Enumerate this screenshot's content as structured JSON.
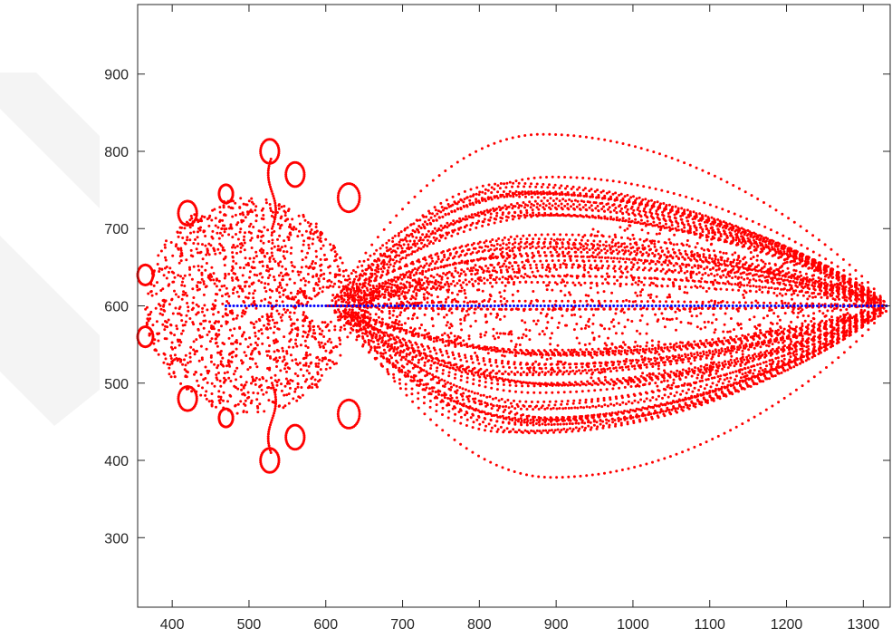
{
  "chart_data": {
    "type": "scatter",
    "title": "",
    "xlabel": "",
    "ylabel": "",
    "xlim": [
      355,
      1335
    ],
    "ylim": [
      210,
      990
    ],
    "xticks": [
      400,
      500,
      600,
      700,
      800,
      900,
      1000,
      1100,
      1200,
      1300
    ],
    "yticks": [
      300,
      400,
      500,
      600,
      700,
      800,
      900
    ],
    "grid": false,
    "legend": "none",
    "series": [
      {
        "marker_color": "#ff0000",
        "description_of_shape": "many red dotted trajectories from x=1330,y=600 looping toward x=360..620 with envelope y 380..820",
        "outer_envelope": [
          {
            "x": 590,
            "y": 600
          },
          {
            "x": 640,
            "y": 690
          },
          {
            "x": 700,
            "y": 740
          },
          {
            "x": 800,
            "y": 800
          },
          {
            "x": 915,
            "y": 822
          },
          {
            "x": 1000,
            "y": 808
          },
          {
            "x": 1100,
            "y": 760
          },
          {
            "x": 1200,
            "y": 685
          },
          {
            "x": 1330,
            "y": 600
          }
        ]
      },
      {
        "marker_color": "#0000ff",
        "points_line": {
          "x_start": 470,
          "x_end": 1330,
          "y": 600
        }
      }
    ]
  }
}
